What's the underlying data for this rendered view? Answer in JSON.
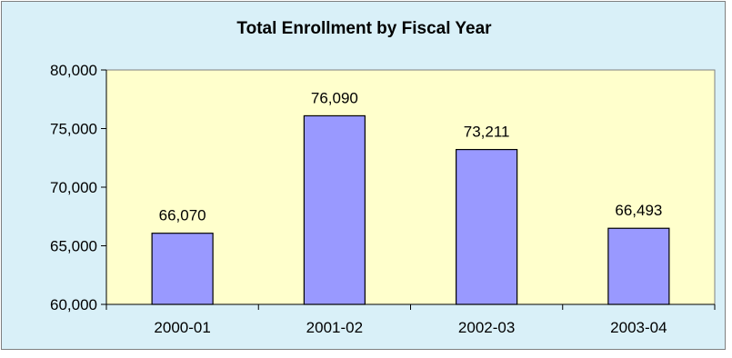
{
  "chart_data": {
    "type": "bar",
    "title": "Total Enrollment by Fiscal Year",
    "xlabel": "",
    "ylabel": "",
    "categories": [
      "2000-01",
      "2001-02",
      "2002-03",
      "2003-04"
    ],
    "values": [
      66070,
      76090,
      73211,
      66493
    ],
    "data_labels": [
      "66,070",
      "76,090",
      "73,211",
      "66,493"
    ],
    "ylim": [
      60000,
      80000
    ],
    "yticks": [
      60000,
      65000,
      70000,
      75000,
      80000
    ],
    "ytick_labels": [
      "60,000",
      "65,000",
      "70,000",
      "75,000",
      "80,000"
    ],
    "grid": false,
    "legend": "none",
    "colors": {
      "bar": "#9999ff",
      "plot_area": "#ffffcc",
      "chart_area": "#d9f0f8",
      "bar_border": "#000000"
    }
  }
}
